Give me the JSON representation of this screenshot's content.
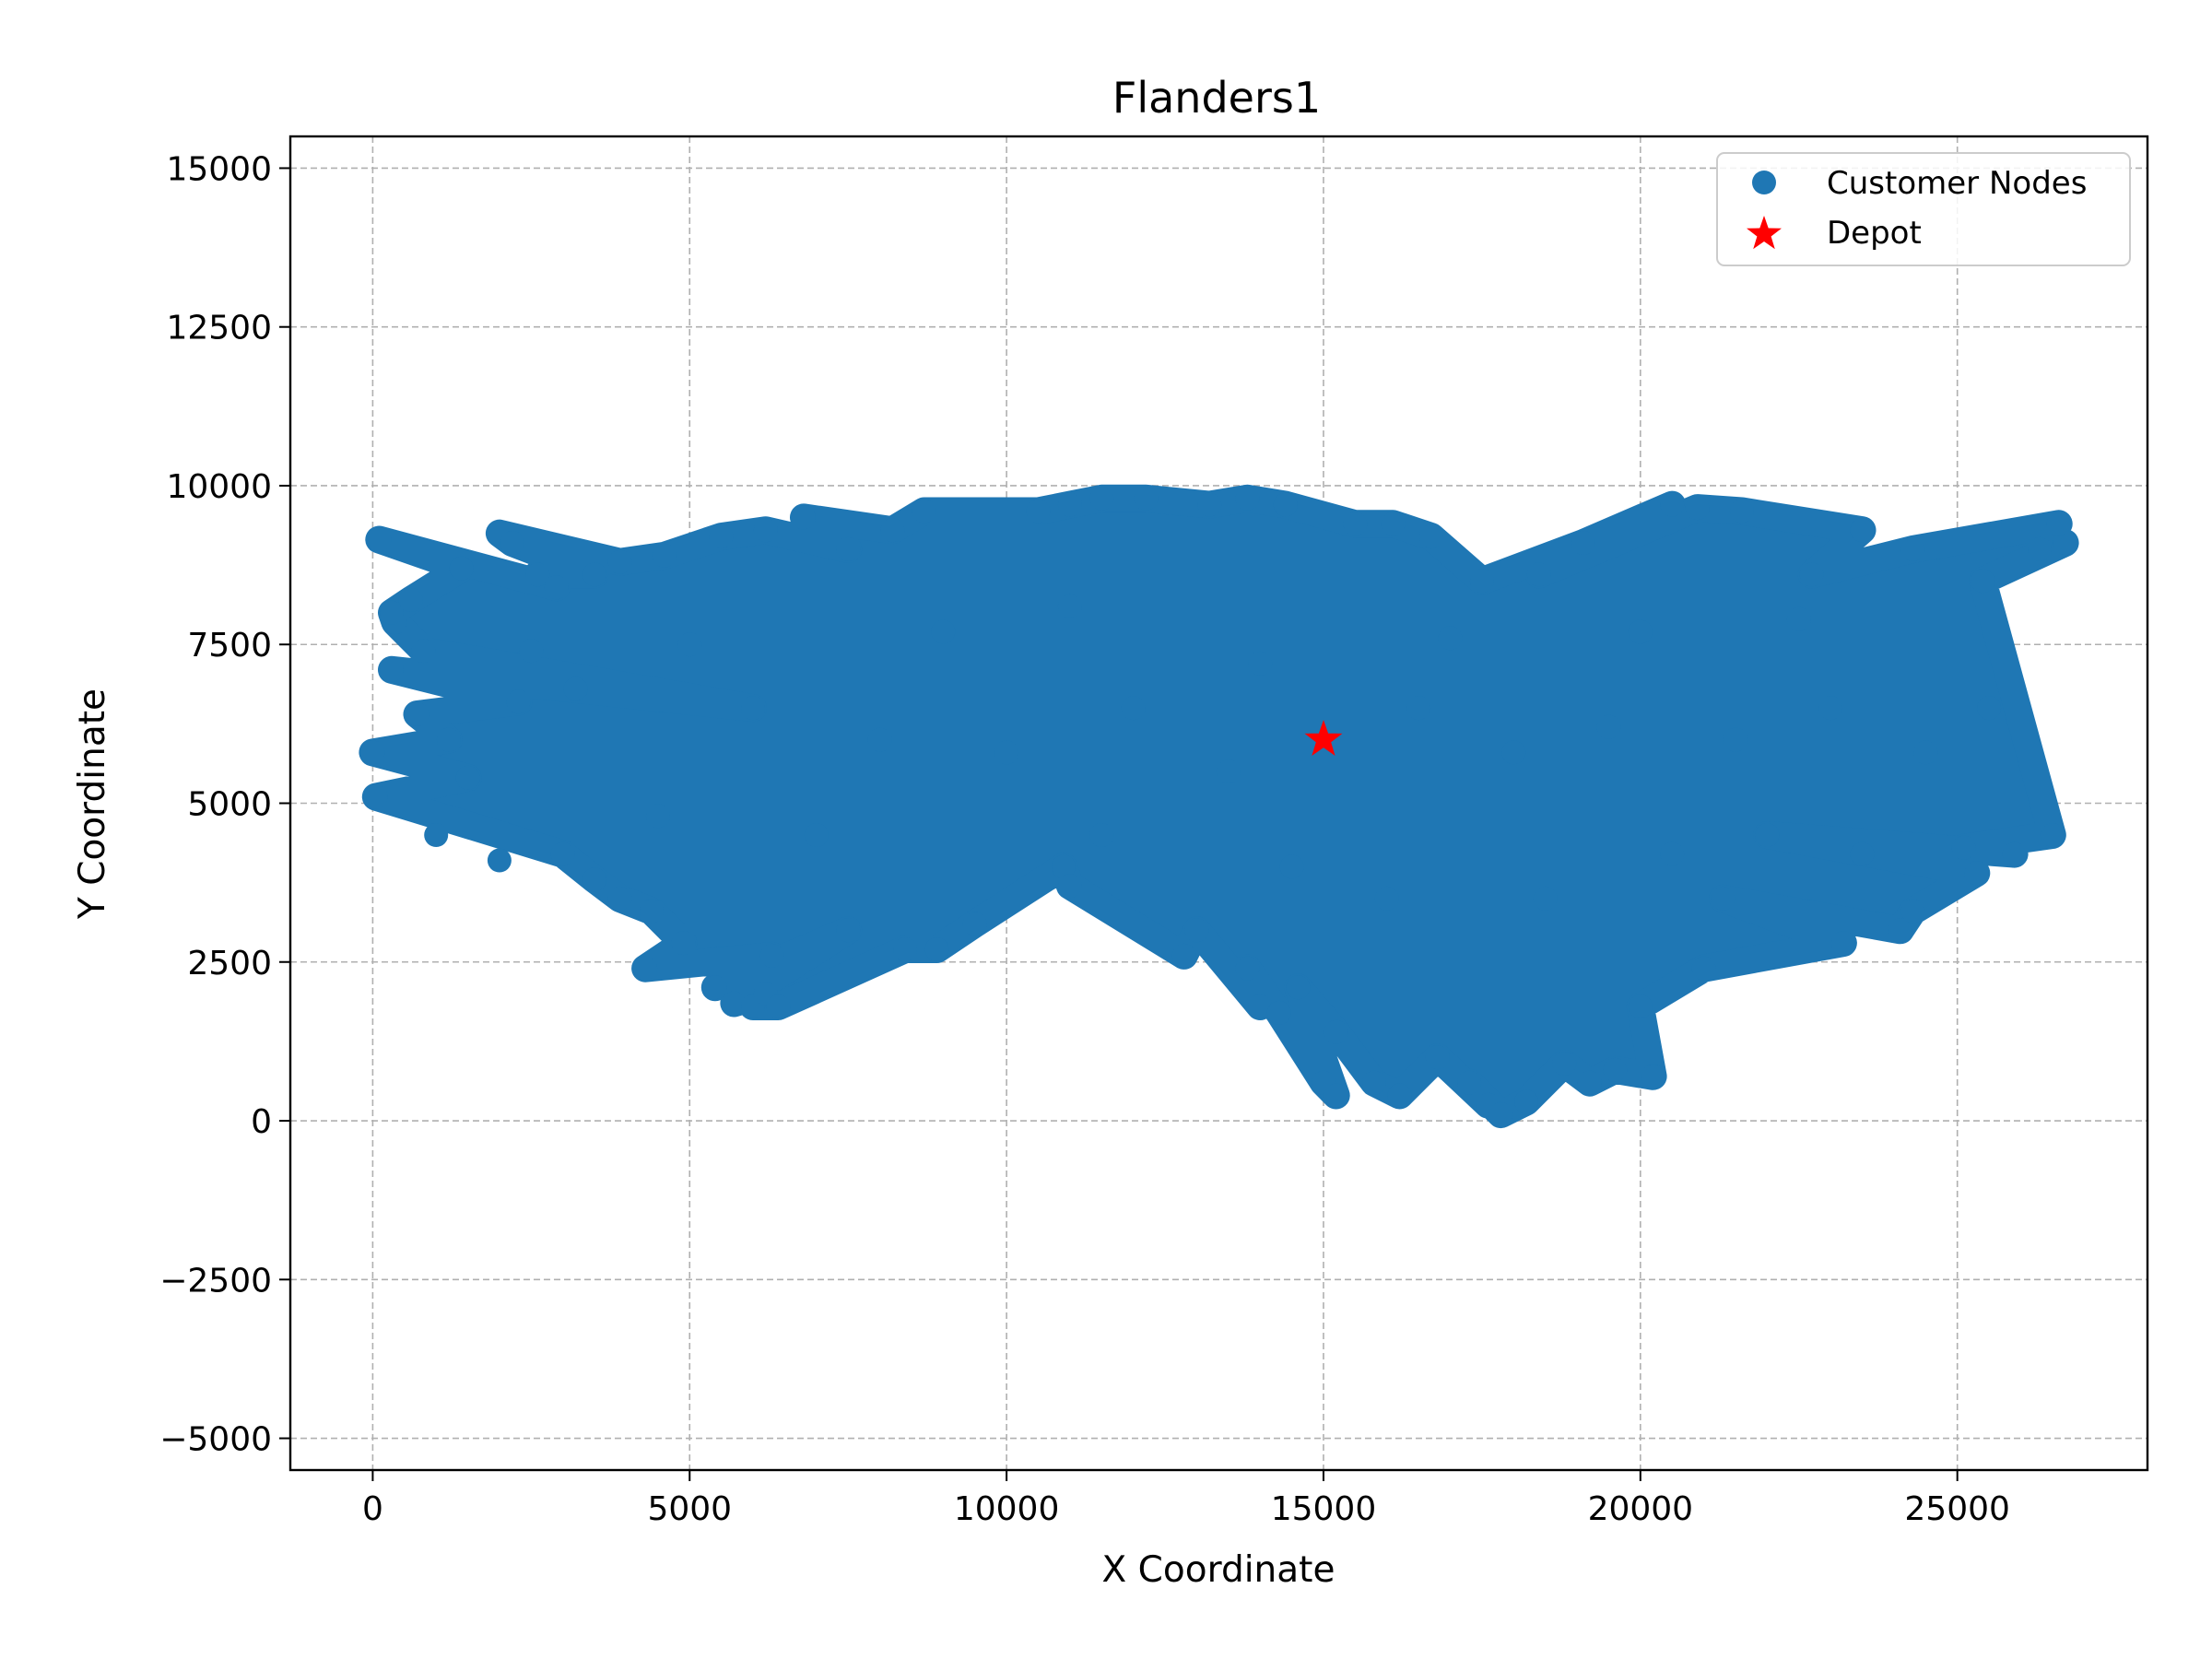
{
  "chart_data": {
    "type": "scatter",
    "title": "Flanders1",
    "xlabel": "X Coordinate",
    "ylabel": "Y Coordinate",
    "xlim": [
      -1300,
      28000
    ],
    "ylim": [
      -5500,
      15500
    ],
    "xticks": [
      0,
      5000,
      10000,
      15000,
      20000,
      25000
    ],
    "yticks": [
      -5000,
      -2500,
      0,
      2500,
      5000,
      7500,
      10000,
      12500,
      15000
    ],
    "xtick_labels": [
      "0",
      "5000",
      "10000",
      "15000",
      "20000",
      "25000"
    ],
    "ytick_labels": [
      "−5000",
      "−2500",
      "0",
      "2500",
      "5000",
      "7500",
      "10000",
      "12500",
      "15000"
    ],
    "grid": true,
    "legend_position": "top-right",
    "series": [
      {
        "name": "Customer Nodes",
        "marker": "circle",
        "color": "#1f77b4",
        "points": [
          [
            100,
            9150
          ],
          [
            0,
            5800
          ],
          [
            50,
            5100
          ],
          [
            300,
            7100
          ],
          [
            350,
            7850
          ],
          [
            300,
            8000
          ],
          [
            600,
            8200
          ],
          [
            700,
            6400
          ],
          [
            800,
            7400
          ],
          [
            1200,
            6000
          ],
          [
            1500,
            5400
          ],
          [
            1400,
            8700
          ],
          [
            2000,
            9250
          ],
          [
            2200,
            9100
          ],
          [
            2300,
            6600
          ],
          [
            2600,
            8600
          ],
          [
            2900,
            8400
          ],
          [
            3000,
            4200
          ],
          [
            3500,
            3800
          ],
          [
            3900,
            3500
          ],
          [
            4300,
            2400
          ],
          [
            4400,
            3300
          ],
          [
            4900,
            2800
          ],
          [
            5400,
            2100
          ],
          [
            5700,
            1850
          ],
          [
            6000,
            1800
          ],
          [
            6200,
            2000
          ],
          [
            6400,
            1800
          ],
          [
            6300,
            2600
          ],
          [
            7500,
            3000
          ],
          [
            8400,
            2700
          ],
          [
            8900,
            2700
          ],
          [
            9500,
            3100
          ],
          [
            10900,
            4000
          ],
          [
            11000,
            3700
          ],
          [
            12800,
            2600
          ],
          [
            13000,
            3000
          ],
          [
            13800,
            2400
          ],
          [
            14000,
            1800
          ],
          [
            14600,
            2100
          ],
          [
            14300,
            1700
          ],
          [
            15200,
            1400
          ],
          [
            15000,
            600
          ],
          [
            15200,
            400
          ],
          [
            15800,
            600
          ],
          [
            16200,
            400
          ],
          [
            16800,
            1000
          ],
          [
            17300,
            600
          ],
          [
            17600,
            250
          ],
          [
            17800,
            100
          ],
          [
            18200,
            300
          ],
          [
            18800,
            900
          ],
          [
            19200,
            600
          ],
          [
            19600,
            800
          ],
          [
            20200,
            700
          ],
          [
            20000,
            1800
          ],
          [
            21000,
            2400
          ],
          [
            21300,
            3500
          ],
          [
            22000,
            4500
          ],
          [
            23200,
            2800
          ],
          [
            24100,
            3000
          ],
          [
            24300,
            3300
          ],
          [
            25100,
            4300
          ],
          [
            25300,
            3900
          ],
          [
            25900,
            4200
          ],
          [
            26500,
            4500
          ],
          [
            26300,
            9000
          ],
          [
            26700,
            9100
          ],
          [
            26600,
            9400
          ],
          [
            25400,
            8500
          ],
          [
            24300,
            9000
          ],
          [
            23500,
            9300
          ],
          [
            22700,
            8600
          ],
          [
            21600,
            9600
          ],
          [
            20500,
            9700
          ],
          [
            20900,
            9650
          ],
          [
            19100,
            9100
          ],
          [
            18400,
            8600
          ],
          [
            17500,
            8500
          ],
          [
            16700,
            9200
          ],
          [
            16100,
            9400
          ],
          [
            15500,
            9400
          ],
          [
            14400,
            9700
          ],
          [
            13800,
            9800
          ],
          [
            13200,
            9700
          ],
          [
            12200,
            9800
          ],
          [
            11500,
            9800
          ],
          [
            11000,
            9700
          ],
          [
            10500,
            9600
          ],
          [
            8700,
            9600
          ],
          [
            8200,
            9300
          ],
          [
            7500,
            9000
          ],
          [
            6800,
            9500
          ],
          [
            6200,
            9300
          ],
          [
            5500,
            9200
          ],
          [
            4600,
            8900
          ],
          [
            3900,
            8800
          ],
          [
            3500,
            8600
          ],
          [
            6000,
            6500
          ],
          [
            8000,
            6000
          ],
          [
            10000,
            5800
          ],
          [
            12000,
            6500
          ],
          [
            13500,
            5500
          ],
          [
            16500,
            6500
          ],
          [
            18000,
            5800
          ],
          [
            19500,
            6200
          ],
          [
            21500,
            6000
          ],
          [
            23000,
            6500
          ],
          [
            24500,
            5800
          ],
          [
            25500,
            6500
          ],
          [
            5000,
            7500
          ],
          [
            9000,
            7700
          ],
          [
            11000,
            8100
          ],
          [
            14000,
            7200
          ],
          [
            17000,
            7600
          ],
          [
            20000,
            7700
          ],
          [
            22500,
            7900
          ],
          [
            4500,
            4800
          ],
          [
            7000,
            4500
          ],
          [
            11500,
            4500
          ],
          [
            14500,
            4000
          ],
          [
            16000,
            3500
          ],
          [
            18500,
            3500
          ],
          [
            20500,
            4200
          ],
          [
            23500,
            4200
          ],
          [
            1000,
            4500
          ],
          [
            2000,
            4100
          ],
          [
            2500,
            7400
          ],
          [
            3200,
            6800
          ]
        ]
      },
      {
        "name": "Depot",
        "marker": "star",
        "color": "#ff0000",
        "points": [
          [
            15000,
            6000
          ]
        ]
      }
    ]
  }
}
